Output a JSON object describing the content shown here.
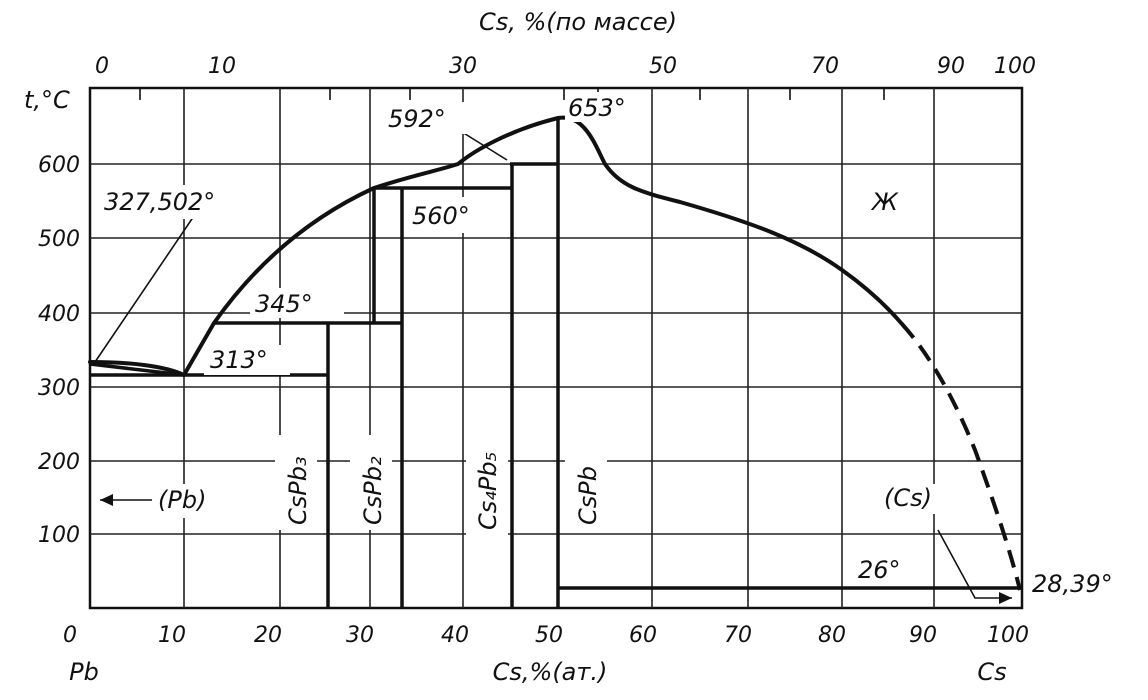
{
  "diagram": {
    "top_axis_title": "Cs, %(по массе)",
    "y_axis_title": "t,°C",
    "bottom_axis_title": "Cs,%(ат.)",
    "left_component": "Pb",
    "right_component": "Cs",
    "top_ticks": [
      "0",
      "10",
      "30",
      "50",
      "70",
      "90",
      "100"
    ],
    "bottom_ticks": [
      "0",
      "10",
      "20",
      "30",
      "40",
      "50",
      "60",
      "70",
      "80",
      "90",
      "100"
    ],
    "y_ticks": [
      "100",
      "200",
      "300",
      "400",
      "500",
      "600"
    ],
    "annotations": {
      "pb_melting": "327,502°",
      "eutectic_313": "313°",
      "peritectic_345": "345°",
      "peritectic_560": "560°",
      "peritectic_592": "592°",
      "max_653": "653°",
      "eutectic_26": "26°",
      "cs_melting": "28,39°",
      "liquid": "Ж",
      "pb_phase": "(Pb)",
      "cs_phase": "(Cs)"
    },
    "phases": {
      "cspb3": "CsPb₃",
      "cspb2": "CsPb₂",
      "cs4pb5": "Cs₄Pb₅",
      "cspb": "CsPb"
    }
  },
  "chart_data": {
    "type": "phase_diagram",
    "x_axis": "Cs, % (at.)",
    "y_axis": "t, °C",
    "xlim": [
      0,
      100
    ],
    "ylim": [
      0,
      700
    ],
    "liquidus": [
      {
        "x": 0,
        "y": 327.5
      },
      {
        "x": 10,
        "y": 313
      },
      {
        "x": 14,
        "y": 385
      },
      {
        "x": 20,
        "y": 470
      },
      {
        "x": 25,
        "y": 530
      },
      {
        "x": 31,
        "y": 560
      },
      {
        "x": 36,
        "y": 580
      },
      {
        "x": 40,
        "y": 592
      },
      {
        "x": 44,
        "y": 620
      },
      {
        "x": 50,
        "y": 653
      },
      {
        "x": 54,
        "y": 640
      },
      {
        "x": 58,
        "y": 568
      },
      {
        "x": 65,
        "y": 545
      },
      {
        "x": 75,
        "y": 500
      },
      {
        "x": 85,
        "y": 420
      },
      {
        "x": 91,
        "y": 320
      },
      {
        "x": 95,
        "y": 210
      },
      {
        "x": 100,
        "y": 28.39
      }
    ],
    "compounds": [
      {
        "name": "CsPb₃",
        "x": 25
      },
      {
        "name": "CsPb₂",
        "x": 33.3
      },
      {
        "name": "Cs₄Pb₅",
        "x": 44.4
      },
      {
        "name": "CsPb",
        "x": 50
      }
    ],
    "invariants": [
      {
        "t": 313,
        "from_x": 0,
        "to_x": 25
      },
      {
        "t": 345,
        "from_x": 14,
        "to_x": 33.3
      },
      {
        "t": 560,
        "from_x": 31,
        "to_x": 44.4
      },
      {
        "t": 592,
        "from_x": 40,
        "to_x": 50
      },
      {
        "t": 26,
        "from_x": 50,
        "to_x": 100
      }
    ]
  }
}
